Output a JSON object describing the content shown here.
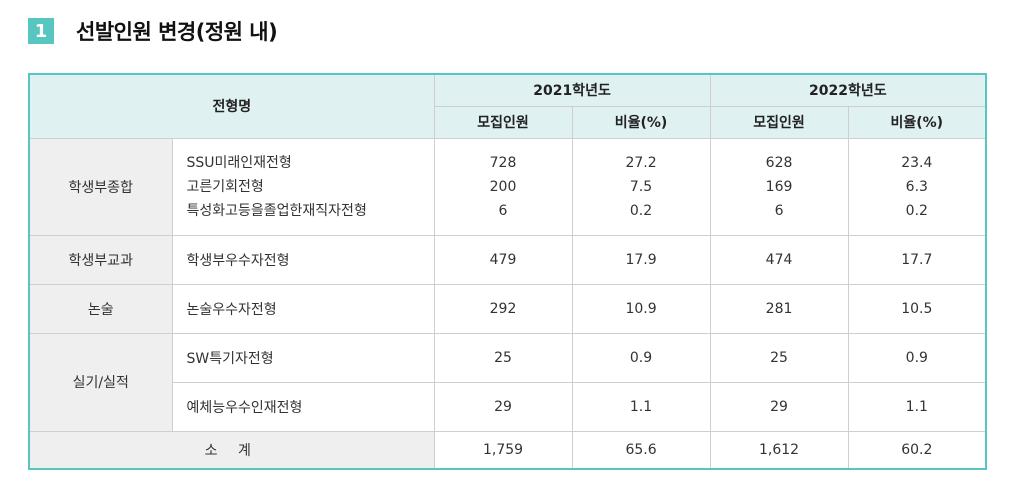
{
  "heading": {
    "number": "1",
    "title": "선발인원 변경(정원 내)"
  },
  "table": {
    "col_type": "전형명",
    "years": [
      "2021학년도",
      "2022학년도"
    ],
    "subcols": [
      "모집인원",
      "비율(%)"
    ],
    "groups": [
      {
        "category": "학생부종합",
        "rows": [
          {
            "name": "SSU미래인재전형",
            "y2021_count": "728",
            "y2021_ratio": "27.2",
            "y2022_count": "628",
            "y2022_ratio": "23.4"
          },
          {
            "name": "고른기회전형",
            "y2021_count": "200",
            "y2021_ratio": "7.5",
            "y2022_count": "169",
            "y2022_ratio": "6.3"
          },
          {
            "name": "특성화고등을졸업한재직자전형",
            "y2021_count": "6",
            "y2021_ratio": "0.2",
            "y2022_count": "6",
            "y2022_ratio": "0.2"
          }
        ]
      },
      {
        "category": "학생부교과",
        "rows": [
          {
            "name": "학생부우수자전형",
            "y2021_count": "479",
            "y2021_ratio": "17.9",
            "y2022_count": "474",
            "y2022_ratio": "17.7"
          }
        ]
      },
      {
        "category": "논술",
        "rows": [
          {
            "name": "논술우수자전형",
            "y2021_count": "292",
            "y2021_ratio": "10.9",
            "y2022_count": "281",
            "y2022_ratio": "10.5"
          }
        ]
      },
      {
        "category": "실기/실적",
        "rows": [
          {
            "name": "SW특기자전형",
            "y2021_count": "25",
            "y2021_ratio": "0.9",
            "y2022_count": "25",
            "y2022_ratio": "0.9"
          },
          {
            "name": "예체능우수인재전형",
            "y2021_count": "29",
            "y2021_ratio": "1.1",
            "y2022_count": "29",
            "y2022_ratio": "1.1"
          }
        ]
      }
    ],
    "total": {
      "label": "소 계",
      "y2021_count": "1,759",
      "y2021_ratio": "65.6",
      "y2022_count": "1,612",
      "y2022_ratio": "60.2"
    }
  }
}
